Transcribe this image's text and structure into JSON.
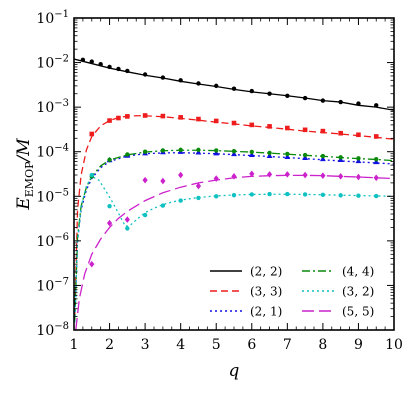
{
  "chart_data": {
    "type": "line",
    "xlabel": "q",
    "ylabel_main": "E",
    "ylabel_sub": "EMOP",
    "ylabel_tail": "/M",
    "xlim": [
      1,
      10
    ],
    "ylim": [
      1e-08,
      0.1
    ],
    "yscale": "log",
    "grid": false,
    "legend_position": "lower-right",
    "x_tick_labels": [
      "1",
      "2",
      "3",
      "4",
      "5",
      "6",
      "7",
      "8",
      "9",
      "10"
    ],
    "y_tick_labels": [
      {
        "base": "10",
        "exp": "−8"
      },
      {
        "base": "10",
        "exp": "−7"
      },
      {
        "base": "10",
        "exp": "−6"
      },
      {
        "base": "10",
        "exp": "−5"
      },
      {
        "base": "10",
        "exp": "−4"
      },
      {
        "base": "10",
        "exp": "−3"
      },
      {
        "base": "10",
        "exp": "−2"
      },
      {
        "base": "10",
        "exp": "−1"
      }
    ],
    "series": [
      {
        "name": "(2, 2)",
        "color": "#000000",
        "dash": "solid",
        "marker": "circle",
        "curve": {
          "x": [
            1,
            1.5,
            2,
            2.5,
            3,
            3.5,
            4,
            4.5,
            5,
            5.5,
            6,
            6.5,
            7,
            7.5,
            8,
            8.5,
            9,
            9.5,
            10
          ],
          "y": [
            0.012,
            0.0095,
            0.0075,
            0.0062,
            0.0052,
            0.0045,
            0.0038,
            0.0033,
            0.0029,
            0.0025,
            0.0022,
            0.002,
            0.0018,
            0.0016,
            0.0014,
            0.0013,
            0.0011,
            0.001,
            0.00085
          ]
        },
        "points": {
          "x": [
            1.25,
            1.5,
            1.75,
            2,
            2.25,
            2.5,
            3,
            3.5,
            4,
            4.5,
            5,
            5.5,
            6,
            6.5,
            7,
            7.5,
            8,
            8.5,
            9,
            9.5
          ],
          "y": [
            0.0115,
            0.0105,
            0.0092,
            0.008,
            0.0072,
            0.0065,
            0.0054,
            0.0046,
            0.004,
            0.0034,
            0.003,
            0.0026,
            0.0023,
            0.002,
            0.0018,
            0.0016,
            0.0014,
            0.0013,
            0.0012,
            0.0011
          ]
        }
      },
      {
        "name": "(3, 3)",
        "color": "#ee1c1c",
        "dash": "dashed",
        "marker": "square",
        "curve": {
          "x": [
            1.02,
            1.1,
            1.2,
            1.35,
            1.5,
            1.75,
            2,
            2.25,
            2.5,
            2.75,
            3,
            3.5,
            4,
            4.5,
            5,
            5.5,
            6,
            6.5,
            7,
            7.5,
            8,
            8.5,
            9,
            9.5,
            10
          ],
          "y": [
            2e-08,
            5e-06,
            3e-05,
            0.00011,
            0.00022,
            0.00038,
            0.0005,
            0.00058,
            0.00063,
            0.00064,
            0.00064,
            0.00061,
            0.00056,
            0.00051,
            0.00046,
            0.00042,
            0.00038,
            0.00035,
            0.00032,
            0.00029,
            0.00027,
            0.00025,
            0.00023,
            0.00021,
            0.00019
          ]
        },
        "points": {
          "x": [
            1.5,
            2,
            2.25,
            2.5,
            3,
            3.5,
            4,
            4.5,
            5,
            5.5,
            6,
            6.5,
            7,
            7.5,
            8,
            8.5,
            9,
            9.5
          ],
          "y": [
            0.00025,
            0.0005,
            0.00057,
            0.00062,
            0.00065,
            0.00063,
            0.00059,
            0.00054,
            0.00049,
            0.00044,
            0.0004,
            0.00037,
            0.00034,
            0.00031,
            0.00029,
            0.00026,
            0.00024,
            0.00022
          ]
        }
      },
      {
        "name": "(2, 1)",
        "color": "#1010e0",
        "dash": "dotted",
        "marker": "triangle",
        "curve": {
          "x": [
            1.02,
            1.1,
            1.2,
            1.35,
            1.5,
            1.75,
            2,
            2.5,
            3,
            3.5,
            4,
            4.5,
            5,
            5.5,
            6,
            6.5,
            7,
            7.5,
            8,
            8.5,
            9,
            9.5,
            10
          ],
          "y": [
            1.5e-08,
            1e-06,
            5e-06,
            1.4e-05,
            2.5e-05,
            4.4e-05,
            6e-05,
            8e-05,
            9e-05,
            9.4e-05,
            9.5e-05,
            9.3e-05,
            9e-05,
            8.6e-05,
            8.2e-05,
            7.8e-05,
            7.4e-05,
            7e-05,
            6.6e-05,
            6.2e-05,
            5.9e-05,
            5.6e-05,
            5.3e-05
          ]
        },
        "points": {
          "x": [
            2,
            2.5,
            3,
            3.5,
            4,
            4.5,
            5,
            5.5,
            6,
            6.5,
            7,
            7.5,
            8,
            8.5,
            9,
            9.5
          ],
          "y": [
            6.5e-05,
            8.2e-05,
            9.3e-05,
            9.8e-05,
            0.0001,
            9.7e-05,
            9.3e-05,
            8.9e-05,
            8.5e-05,
            8.1e-05,
            7.7e-05,
            7.3e-05,
            6.9e-05,
            6.6e-05,
            6.2e-05,
            5.9e-05
          ]
        }
      },
      {
        "name": "(4, 4)",
        "color": "#0a8a0a",
        "dash": "dashdot",
        "marker": "circle",
        "curve": {
          "x": [
            1.02,
            1.1,
            1.2,
            1.35,
            1.5,
            1.75,
            2,
            2.5,
            3,
            3.5,
            4,
            4.5,
            5,
            5.5,
            6,
            6.5,
            7,
            7.5,
            8,
            8.5,
            9,
            9.5,
            10
          ],
          "y": [
            1.5e-08,
            1.2e-06,
            6e-06,
            1.6e-05,
            2.8e-05,
            4.8e-05,
            6.5e-05,
            8.5e-05,
            9.8e-05,
            0.000105,
            0.000108,
            0.000108,
            0.000106,
            0.000102,
            9.8e-05,
            9.3e-05,
            8.8e-05,
            8.3e-05,
            7.9e-05,
            7.4e-05,
            7e-05,
            6.7e-05,
            6.3e-05
          ]
        },
        "points": {
          "x": [
            1.5,
            2,
            2.5,
            3,
            3.5,
            4,
            4.5,
            5,
            5.5,
            6,
            6.5,
            7,
            7.5,
            8,
            8.5,
            9,
            9.5
          ],
          "y": [
            2.8e-05,
            6.6e-05,
            8.7e-05,
            0.0001,
            0.000107,
            0.00011,
            0.00011,
            0.000107,
            0.000103,
            9.9e-05,
            9.4e-05,
            8.9e-05,
            8.4e-05,
            8e-05,
            7.5e-05,
            7.1e-05,
            6.8e-05
          ]
        }
      },
      {
        "name": "(3, 2)",
        "color": "#0fc1c1",
        "dash": "dotted",
        "marker": "circle",
        "curve": {
          "x": [
            1.02,
            1.1,
            1.2,
            1.35,
            1.5,
            1.7,
            1.9,
            2.1,
            2.3,
            2.45,
            2.6,
            2.8,
            3,
            3.25,
            3.5,
            3.75,
            4,
            4.5,
            5,
            5.5,
            6,
            6.5,
            7,
            7.5,
            8,
            8.5,
            9,
            9.5,
            10
          ],
          "y": [
            1.5e-08,
            1e-06,
            6e-06,
            1.7e-05,
            2.8e-05,
            2.3e-05,
            1.3e-05,
            7e-06,
            3.5e-06,
            2.1e-06,
            2.3e-06,
            3.2e-06,
            4.3e-06,
            5.4e-06,
            6.5e-06,
            7.4e-06,
            8.2e-06,
            9.4e-06,
            1.02e-05,
            1.07e-05,
            1.1e-05,
            1.11e-05,
            1.11e-05,
            1.1e-05,
            1.08e-05,
            1.06e-05,
            1.04e-05,
            1.02e-05,
            1e-05
          ]
        },
        "points": {
          "x": [
            1.5,
            2,
            2.5,
            3,
            3.5,
            4,
            4.5,
            5,
            5.5,
            6,
            6.5,
            7,
            7.5,
            8,
            8.5,
            9,
            9.5
          ],
          "y": [
            3e-05,
            6e-06,
            1.9e-06,
            3.8e-06,
            6.2e-06,
            8e-06,
            9.2e-06,
            1e-05,
            1.06e-05,
            1.1e-05,
            1.12e-05,
            1.12e-05,
            1.1e-05,
            1.08e-05,
            1.05e-05,
            1.03e-05,
            1.01e-05
          ]
        }
      },
      {
        "name": "(5, 5)",
        "color": "#cc22cc",
        "dash": "longdash",
        "marker": "diamond",
        "curve": {
          "x": [
            1.05,
            1.15,
            1.3,
            1.5,
            1.75,
            2,
            2.25,
            2.5,
            3,
            3.5,
            4,
            4.5,
            5,
            5.5,
            6,
            6.5,
            7,
            7.5,
            8,
            8.5,
            9,
            9.5,
            10
          ],
          "y": [
            1e-08,
            5e-08,
            1.8e-07,
            5e-07,
            1.1e-06,
            2e-06,
            3.2e-06,
            4.6e-06,
            8e-06,
            1.2e-05,
            1.6e-05,
            2e-05,
            2.3e-05,
            2.6e-05,
            2.8e-05,
            2.9e-05,
            2.95e-05,
            2.95e-05,
            2.9e-05,
            2.8e-05,
            2.7e-05,
            2.6e-05,
            2.5e-05
          ]
        },
        "points": {
          "x": [
            1.5,
            2,
            2.5,
            3,
            3.5,
            4,
            4.5,
            5,
            5.5,
            6,
            6.5,
            7,
            7.5,
            8,
            8.5,
            9,
            9.5
          ],
          "y": [
            3e-07,
            2.5e-06,
            3e-06,
            2.3e-05,
            2.2e-05,
            3e-05,
            1.7e-05,
            2.5e-05,
            2.8e-05,
            3.2e-05,
            3.1e-05,
            3.1e-05,
            3e-05,
            2.9e-05,
            2.8e-05,
            2.7e-05,
            2.6e-05
          ]
        }
      }
    ]
  }
}
